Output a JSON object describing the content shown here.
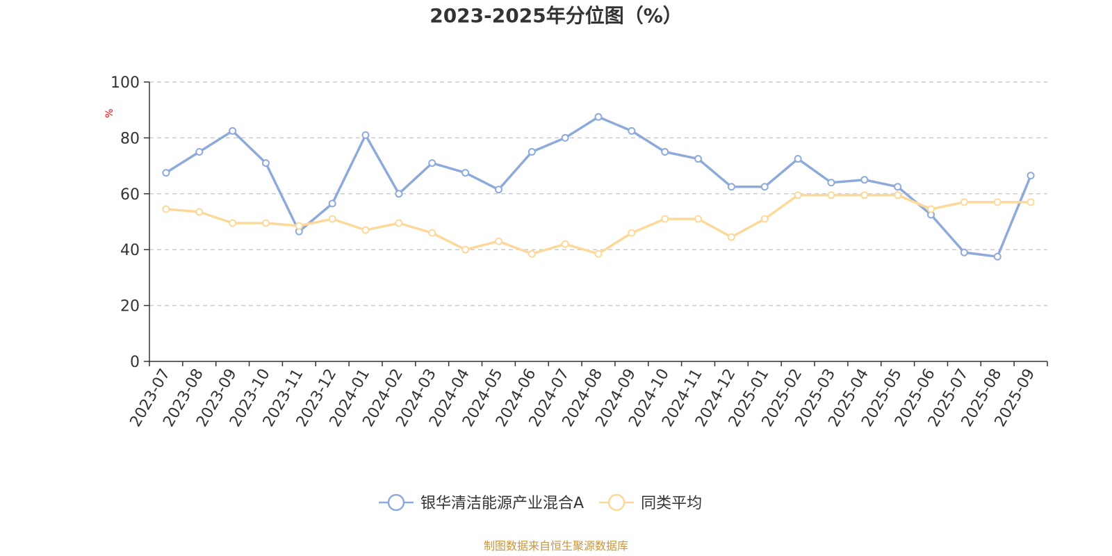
{
  "chart_data": {
    "type": "line",
    "title": "2023-2025年分位图（%）",
    "ylabel": "%",
    "xlabel": "",
    "ylim": [
      0,
      100
    ],
    "yticks": [
      0,
      20,
      40,
      60,
      80,
      100
    ],
    "grid": true,
    "legend_position": "bottom",
    "categories": [
      "2023-07",
      "2023-08",
      "2023-09",
      "2023-10",
      "2023-11",
      "2023-12",
      "2024-01",
      "2024-02",
      "2024-03",
      "2024-04",
      "2024-05",
      "2024-06",
      "2024-07",
      "2024-08",
      "2024-09",
      "2024-10",
      "2024-11",
      "2024-12",
      "2025-01",
      "2025-02",
      "2025-03",
      "2025-04",
      "2025-05",
      "2025-06",
      "2025-07",
      "2025-08",
      "2025-09"
    ],
    "series": [
      {
        "name": "银华清洁能源产业混合A",
        "color": "#8eaadb",
        "values": [
          67.5,
          75,
          82.5,
          71,
          46.5,
          56.5,
          81,
          60,
          71,
          67.5,
          61.5,
          75,
          80,
          87.5,
          82.5,
          75,
          72.5,
          62.5,
          62.5,
          72.5,
          64,
          65,
          62.5,
          52.5,
          39,
          37.5,
          66.5
        ]
      },
      {
        "name": "同类平均",
        "color": "#fcd99a",
        "values": [
          54.5,
          53.5,
          49.5,
          49.5,
          48.5,
          51,
          47,
          49.5,
          46,
          40,
          43,
          38.5,
          42,
          38.5,
          46,
          51,
          51,
          44.5,
          51,
          59.5,
          59.5,
          59.5,
          59.5,
          54.5,
          57,
          57,
          57
        ]
      }
    ]
  },
  "unit_color": "#ff0000",
  "source": {
    "text": "制图数据来自恒生聚源数据库",
    "color": "#c8963c"
  }
}
